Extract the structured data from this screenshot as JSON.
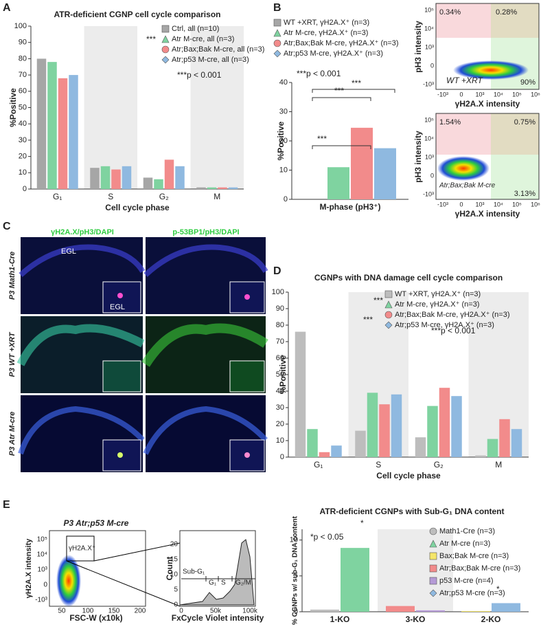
{
  "chart_data": [
    {
      "type": "bar",
      "title": "ATR-deficient CGNP cell cycle comparison",
      "y_label": "%Positive",
      "x_label": "Cell cycle phase",
      "categories": [
        "G₁",
        "S",
        "G₂",
        "M"
      ],
      "ylim": [
        0,
        100
      ],
      "yticks": [
        0,
        10,
        20,
        30,
        40,
        50,
        60,
        70,
        80,
        90,
        100
      ],
      "series": [
        {
          "name": "Ctrl, all (n=10)",
          "color": "#a6a6a6",
          "values": [
            80,
            13,
            7,
            1
          ]
        },
        {
          "name": "Atr M-cre, all (n=3)",
          "color": "#7fd3a0",
          "values": [
            78,
            14,
            6,
            1
          ]
        },
        {
          "name": "Atr;Bax;Bak M-cre, all (n=3)",
          "color": "#f28b8b",
          "values": [
            68,
            12,
            18,
            1
          ]
        },
        {
          "name": "Atr;p53 M-cre, all (n=3)",
          "color": "#8fb9e0",
          "values": [
            70,
            14,
            14,
            1
          ]
        }
      ],
      "annotations": [
        "***p < 0.001",
        "***"
      ]
    },
    {
      "type": "bar",
      "y_label": "%Positive",
      "categories": [
        "M-phase (pH3⁺)"
      ],
      "ylim": [
        0,
        40
      ],
      "yticks": [
        0,
        10,
        20,
        30,
        40
      ],
      "series": [
        {
          "name": "WT +XRT, γH2A.X⁺ (n=3)",
          "color": "#a6a6a6",
          "values": [
            0
          ]
        },
        {
          "name": "Atr M-cre, γH2A.X⁺ (n=3)",
          "color": "#7fd3a0",
          "values": [
            11
          ]
        },
        {
          "name": "Atr;Bax;Bak M-cre, γH2A.X⁺ (n=3)",
          "color": "#f28b8b",
          "values": [
            24.5
          ]
        },
        {
          "name": "Atr;p53 M-cre, γH2A.X⁺ (n=3)",
          "color": "#8fb9e0",
          "values": [
            17.5
          ]
        }
      ],
      "annotations": [
        "***p < 0.001",
        "***",
        "***",
        "***"
      ]
    },
    {
      "type": "bar",
      "title": "CGNPs with DNA damage cell cycle comparison",
      "y_label": "%Positive",
      "x_label": "Cell cycle phase",
      "categories": [
        "G₁",
        "S",
        "G₂",
        "M"
      ],
      "ylim": [
        0,
        100
      ],
      "yticks": [
        0,
        10,
        20,
        30,
        40,
        50,
        60,
        70,
        80,
        90,
        100
      ],
      "series": [
        {
          "name": "WT +XRT, γH2A.X⁺ (n=3)",
          "color": "#bdbdbd",
          "values": [
            76,
            16,
            12,
            1
          ]
        },
        {
          "name": "Atr M-cre, γH2A.X⁺ (n=3)",
          "color": "#7fd3a0",
          "values": [
            17,
            39,
            31,
            11
          ]
        },
        {
          "name": "Atr;Bax;Bak M-cre, γH2A.X⁺ (n=3)",
          "color": "#f28b8b",
          "values": [
            3,
            32,
            42,
            23
          ]
        },
        {
          "name": "Atr;p53 M-cre, γH2A.X⁺ (n=3)",
          "color": "#8fb9e0",
          "values": [
            7,
            38,
            37,
            17
          ]
        }
      ],
      "annotations": [
        "***p < 0.001",
        "***",
        "***"
      ]
    },
    {
      "type": "bar",
      "title": "ATR-deficient CGNPs with Sub-G₁ DNA content",
      "y_label": "% CGNPs w/ sub-G₁ DNA content",
      "categories": [
        "1-KO",
        "3-KO",
        "2-KO"
      ],
      "ylim": [
        0,
        11.5
      ],
      "yticks": [
        0,
        5,
        10
      ],
      "series": [
        {
          "name": "Math1-Cre (n=3)",
          "color": "#bdbdbd",
          "values": [
            0.3,
            null,
            null
          ]
        },
        {
          "name": "Atr M-cre (n=3)",
          "color": "#7fd3a0",
          "values": [
            8.9,
            null,
            null
          ]
        },
        {
          "name": "Bax;Bak M-cre (n=3)",
          "color": "#f5e66a",
          "values": [
            null,
            null,
            0.1
          ]
        },
        {
          "name": "Atr;Bax;Bak M-cre (n=3)",
          "color": "#f28b8b",
          "values": [
            null,
            0.8,
            null
          ]
        },
        {
          "name": "p53 M-cre (n=4)",
          "color": "#b59ad6",
          "values": [
            null,
            0.2,
            null
          ]
        },
        {
          "name": "Atr;p53 M-cre (n=3)",
          "color": "#8fb9e0",
          "values": [
            null,
            null,
            1.2
          ]
        }
      ],
      "annotations": [
        "*p < 0.05",
        "*",
        "*"
      ]
    }
  ],
  "panels": [
    "A",
    "B",
    "C",
    "D",
    "E"
  ],
  "flow_b": {
    "y_label": "pH3 intensity",
    "x_label": "γH2A.X intensity",
    "yticks": [
      "10⁵",
      "10⁴",
      "10³",
      "0",
      "-10³"
    ],
    "xticks": [
      "-10³",
      "0",
      "10³",
      "10⁴",
      "10⁵",
      "10⁶"
    ],
    "top": [
      "0.34%",
      "0.28%",
      "90%",
      "WT +XRT"
    ],
    "bottom": [
      "1.54%",
      "0.75%",
      "3.13%",
      "Atr;Bax;Bak M-cre"
    ]
  },
  "micro": {
    "columns": [
      "γH2A.X/pH3/DAPI",
      "p-53BP1/pH3/DAPI"
    ],
    "rows": [
      "P3 Math1-Cre",
      "P3 WT +XRT",
      "P3 Atr M-cre"
    ],
    "labels": [
      "EGL",
      "EGL"
    ]
  },
  "flow_e": {
    "title": "P3 Atr;p53 M-cre",
    "y_label": "γH2A.X intensity",
    "x_label": "FSC-W (x10k)",
    "yticks": [
      "10⁵",
      "10⁴",
      "10³",
      "0",
      "-10³"
    ],
    "xticks": [
      "50",
      "100",
      "150",
      "200"
    ],
    "gate": "γH2A.X⁺",
    "hist_y_label": "Count",
    "hist_x_label": "FxCycle Violet intensity",
    "hist_yticks": [
      "0",
      "5",
      "10",
      "15",
      "20"
    ],
    "hist_xticks": [
      "0",
      "50k",
      "100k"
    ],
    "gates": [
      "Sub-G₁",
      "G₁",
      "S",
      "G₂/M"
    ]
  }
}
